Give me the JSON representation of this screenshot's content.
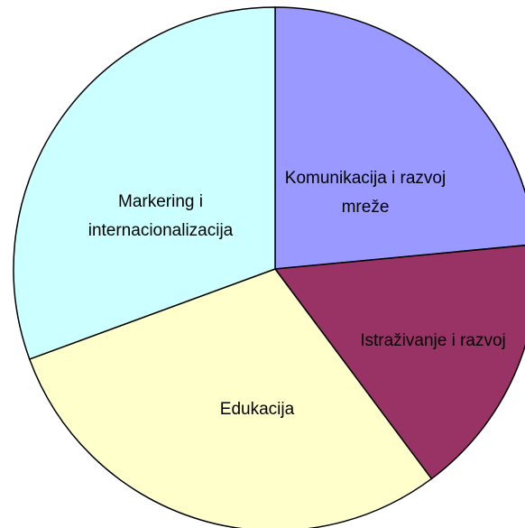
{
  "chart_data": {
    "type": "pie",
    "categories": [
      "Komunikacija i razvoj mreže",
      "Istraživanje i razvoj",
      "Edukacija",
      "Markering i internacionalizacija"
    ],
    "values": [
      23.5,
      16.3,
      29.6,
      30.6
    ],
    "colors": [
      "#9999ff",
      "#993366",
      "#ffffcc",
      "#ccffff"
    ]
  }
}
